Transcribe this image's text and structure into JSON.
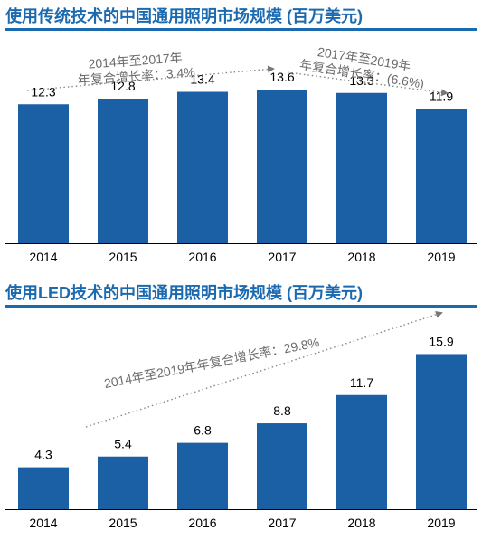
{
  "chart_data": [
    {
      "type": "bar",
      "title": "使用传统技术的中国通用照明市场规模 (百万美元)",
      "categories": [
        "2014",
        "2015",
        "2016",
        "2017",
        "2018",
        "2019"
      ],
      "values": [
        12.3,
        12.8,
        13.4,
        13.6,
        13.3,
        11.9
      ],
      "ylim": [
        0,
        16
      ],
      "color": "#1b5fa5",
      "annotations": [
        {
          "lines": [
            "2014年至2017年",
            "年复合增长率：3.4%"
          ],
          "from": "2014",
          "to": "2017"
        },
        {
          "lines": [
            "2017年至2019年",
            "年复合增长率：(6.6%)"
          ],
          "from": "2017",
          "to": "2019"
        }
      ]
    },
    {
      "type": "bar",
      "title": "使用LED技术的中国通用照明市场规模 (百万美元)",
      "categories": [
        "2014",
        "2015",
        "2016",
        "2017",
        "2018",
        "2019"
      ],
      "values": [
        4.3,
        5.4,
        6.8,
        8.8,
        11.7,
        15.9
      ],
      "ylim": [
        0,
        19
      ],
      "color": "#1b5fa5",
      "annotations": [
        {
          "lines": [
            "2014年至2019年年复合增长率：29.8%"
          ],
          "from": "2014",
          "to": "2019"
        }
      ]
    }
  ]
}
